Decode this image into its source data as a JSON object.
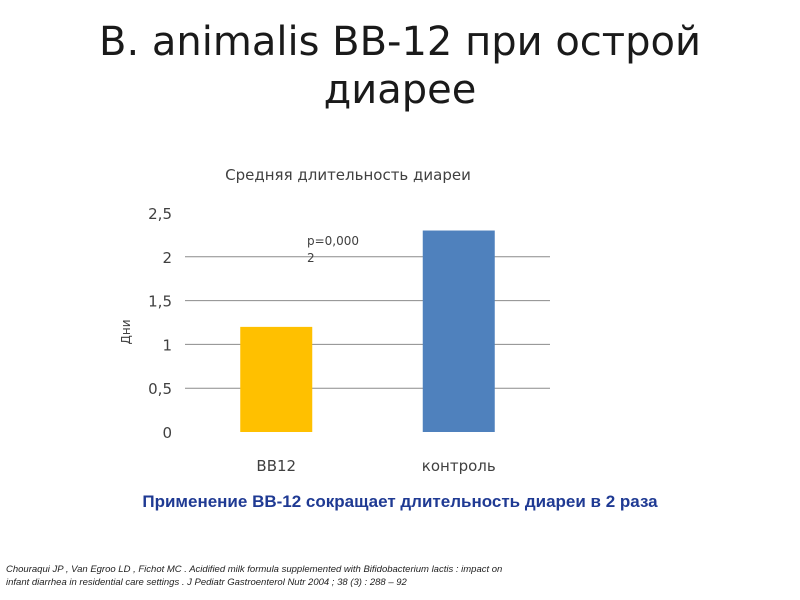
{
  "slide": {
    "title_line1": "B. animalis BB-12 при острой",
    "title_line2": "диарее",
    "conclusion": "Применение BB-12 сокращает длительность диареи в 2 раза",
    "citation_line1": "Chouraqui JP , Van Egroo LD , Fichot MC . Acidified milk formula supplemented with Bifidobacterium lactis : impact on",
    "citation_line2": "infant diarrhea in residential care settings . J Pediatr Gastroenterol Nutr 2004 ; 38 (3) : 288 – 92"
  },
  "chart_data": {
    "type": "bar",
    "title": "Средняя длительность диареи",
    "ylabel": "Дни",
    "xlabel": "",
    "categories": [
      "BB12",
      "контроль"
    ],
    "values": [
      1.2,
      2.3
    ],
    "bar_colors": [
      "#FFC000",
      "#4F81BD"
    ],
    "ylim": [
      0,
      2.5
    ],
    "yticks": [
      0,
      0.5,
      1,
      1.5,
      2,
      2.5
    ],
    "ytick_labels": [
      "0",
      "0,5",
      "1",
      "1,5",
      "2",
      "2,5"
    ],
    "grid": true,
    "annotation": {
      "line1": "p=0,000",
      "line2": "2"
    }
  }
}
